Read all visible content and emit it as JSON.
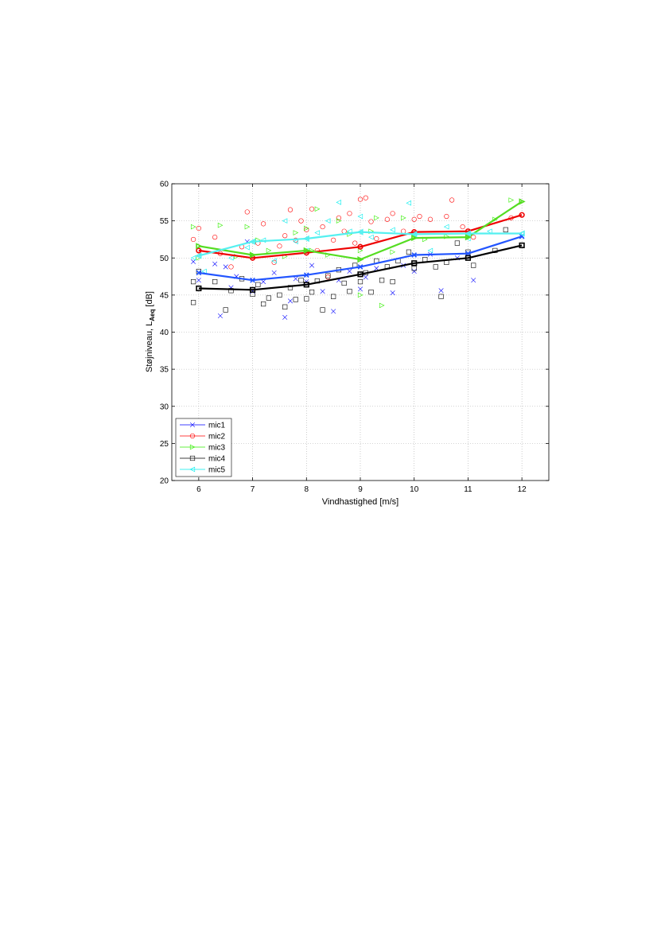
{
  "chart_data": {
    "type": "scatter",
    "xlabel": "Vindhastighed [m/s]",
    "ylabel_main": "Støjniveau, L",
    "ylabel_sub": "Aeq",
    "ylabel_unit": " [dB]",
    "xlim": [
      5.5,
      12.5
    ],
    "ylim": [
      20,
      60
    ],
    "xticks": [
      6,
      7,
      8,
      9,
      10,
      11,
      12
    ],
    "yticks": [
      20,
      25,
      30,
      35,
      40,
      45,
      50,
      55,
      60
    ],
    "grid": true,
    "legend_position": "lower-left",
    "series": [
      {
        "name": "mic1",
        "color": "#0000ff",
        "fit_color": "#2255ff",
        "marker": "x",
        "fit": {
          "x": [
            6,
            7,
            8,
            9,
            10,
            11,
            12
          ],
          "y": [
            48.0,
            47.0,
            47.7,
            48.8,
            50.4,
            50.6,
            52.9
          ]
        },
        "points": [
          [
            5.9,
            49.5
          ],
          [
            6.0,
            47.0
          ],
          [
            6.3,
            49.2
          ],
          [
            6.4,
            42.2
          ],
          [
            6.5,
            48.8
          ],
          [
            6.6,
            46.0
          ],
          [
            6.7,
            47.5
          ],
          [
            6.9,
            52.2
          ],
          [
            7.0,
            45.5
          ],
          [
            7.2,
            46.8
          ],
          [
            7.4,
            48.0
          ],
          [
            7.6,
            42.0
          ],
          [
            7.7,
            44.2
          ],
          [
            7.8,
            47.2
          ],
          [
            8.0,
            46.8
          ],
          [
            8.1,
            49.0
          ],
          [
            8.3,
            45.5
          ],
          [
            8.5,
            42.8
          ],
          [
            8.6,
            47.0
          ],
          [
            8.8,
            48.2
          ],
          [
            9.0,
            45.8
          ],
          [
            9.1,
            47.4
          ],
          [
            9.3,
            48.6
          ],
          [
            9.6,
            45.3
          ],
          [
            9.8,
            49.0
          ],
          [
            10.0,
            48.2
          ],
          [
            10.3,
            50.5
          ],
          [
            10.5,
            45.6
          ],
          [
            10.8,
            50.0
          ],
          [
            11.1,
            47.0
          ],
          [
            12.0,
            53.0
          ]
        ]
      },
      {
        "name": "mic2",
        "color": "#ff0000",
        "fit_color": "#ee0000",
        "marker": "o",
        "fit": {
          "x": [
            6,
            7,
            8,
            9,
            10,
            11,
            12
          ],
          "y": [
            51.0,
            50.0,
            50.7,
            51.5,
            53.5,
            53.6,
            55.8
          ]
        },
        "points": [
          [
            5.9,
            52.5
          ],
          [
            6.0,
            54.0
          ],
          [
            6.3,
            52.8
          ],
          [
            6.4,
            50.6
          ],
          [
            6.6,
            48.8
          ],
          [
            6.8,
            51.5
          ],
          [
            6.9,
            56.2
          ],
          [
            7.1,
            52.0
          ],
          [
            7.2,
            54.6
          ],
          [
            7.4,
            49.4
          ],
          [
            7.5,
            51.6
          ],
          [
            7.6,
            53.0
          ],
          [
            7.7,
            56.5
          ],
          [
            7.8,
            52.4
          ],
          [
            7.9,
            55.0
          ],
          [
            8.0,
            53.8
          ],
          [
            8.1,
            56.6
          ],
          [
            8.2,
            51.0
          ],
          [
            8.3,
            54.2
          ],
          [
            8.4,
            47.4
          ],
          [
            8.5,
            52.4
          ],
          [
            8.6,
            55.4
          ],
          [
            8.7,
            53.6
          ],
          [
            8.8,
            56.0
          ],
          [
            8.9,
            52.0
          ],
          [
            9.0,
            57.9
          ],
          [
            9.1,
            58.1
          ],
          [
            9.2,
            54.9
          ],
          [
            9.3,
            52.6
          ],
          [
            9.5,
            55.2
          ],
          [
            9.6,
            56.0
          ],
          [
            9.8,
            53.6
          ],
          [
            10.0,
            55.2
          ],
          [
            10.1,
            55.6
          ],
          [
            10.3,
            55.2
          ],
          [
            10.6,
            55.6
          ],
          [
            10.7,
            57.8
          ],
          [
            10.9,
            54.2
          ],
          [
            11.1,
            52.8
          ],
          [
            11.8,
            55.4
          ],
          [
            12.0,
            55.8
          ]
        ]
      },
      {
        "name": "mic3",
        "color": "#33ee00",
        "fit_color": "#55dd22",
        "marker": "tri-right",
        "fit": {
          "x": [
            6,
            7,
            8,
            9,
            10,
            11,
            12
          ],
          "y": [
            51.6,
            50.4,
            51.0,
            49.8,
            52.7,
            52.8,
            57.6
          ]
        },
        "points": [
          [
            5.9,
            54.2
          ],
          [
            6.0,
            50.0
          ],
          [
            6.4,
            54.4
          ],
          [
            6.7,
            50.2
          ],
          [
            6.9,
            54.2
          ],
          [
            7.1,
            52.4
          ],
          [
            7.3,
            51.0
          ],
          [
            7.6,
            50.2
          ],
          [
            7.8,
            53.4
          ],
          [
            8.0,
            54.0
          ],
          [
            8.1,
            51.0
          ],
          [
            8.2,
            56.6
          ],
          [
            8.4,
            50.4
          ],
          [
            8.6,
            55.0
          ],
          [
            8.8,
            53.2
          ],
          [
            9.0,
            45.0
          ],
          [
            9.0,
            51.0
          ],
          [
            9.2,
            53.6
          ],
          [
            9.3,
            55.4
          ],
          [
            9.4,
            43.6
          ],
          [
            9.6,
            50.8
          ],
          [
            9.8,
            55.4
          ],
          [
            10.0,
            52.8
          ],
          [
            10.2,
            52.5
          ],
          [
            10.6,
            52.9
          ],
          [
            11.0,
            52.8
          ],
          [
            11.5,
            55.2
          ],
          [
            11.8,
            57.8
          ],
          [
            12.0,
            57.6
          ]
        ]
      },
      {
        "name": "mic4",
        "color": "#000000",
        "fit_color": "#000000",
        "marker": "square",
        "fit": {
          "x": [
            6,
            7,
            8,
            9,
            10,
            11,
            12
          ],
          "y": [
            45.9,
            45.7,
            46.4,
            47.8,
            49.3,
            50.0,
            51.7
          ]
        },
        "points": [
          [
            5.9,
            44.0
          ],
          [
            5.9,
            46.8
          ],
          [
            6.0,
            48.2
          ],
          [
            6.3,
            46.8
          ],
          [
            6.5,
            43.0
          ],
          [
            6.6,
            45.6
          ],
          [
            6.8,
            47.2
          ],
          [
            7.0,
            45.1
          ],
          [
            7.1,
            46.4
          ],
          [
            7.2,
            43.8
          ],
          [
            7.3,
            44.6
          ],
          [
            7.5,
            45.0
          ],
          [
            7.6,
            43.4
          ],
          [
            7.7,
            46.0
          ],
          [
            7.8,
            44.4
          ],
          [
            7.9,
            47.0
          ],
          [
            8.0,
            44.5
          ],
          [
            8.1,
            45.4
          ],
          [
            8.2,
            46.9
          ],
          [
            8.3,
            43.0
          ],
          [
            8.4,
            47.6
          ],
          [
            8.5,
            44.8
          ],
          [
            8.6,
            48.4
          ],
          [
            8.7,
            46.6
          ],
          [
            8.8,
            45.5
          ],
          [
            8.9,
            49.0
          ],
          [
            9.0,
            46.8
          ],
          [
            9.1,
            48.0
          ],
          [
            9.2,
            45.4
          ],
          [
            9.3,
            49.6
          ],
          [
            9.4,
            47.0
          ],
          [
            9.5,
            48.8
          ],
          [
            9.6,
            46.8
          ],
          [
            9.7,
            49.6
          ],
          [
            9.9,
            50.8
          ],
          [
            10.0,
            48.6
          ],
          [
            10.2,
            49.8
          ],
          [
            10.4,
            48.8
          ],
          [
            10.5,
            44.8
          ],
          [
            10.6,
            49.4
          ],
          [
            10.8,
            52.0
          ],
          [
            11.0,
            50.8
          ],
          [
            11.1,
            49.0
          ],
          [
            11.5,
            51.0
          ],
          [
            11.7,
            53.8
          ],
          [
            12.0,
            51.7
          ]
        ]
      },
      {
        "name": "mic5",
        "color": "#00eeee",
        "fit_color": "#55f0f0",
        "marker": "tri-left",
        "fit": {
          "x": [
            6,
            7,
            8,
            9,
            10,
            11,
            12
          ],
          "y": [
            50.3,
            52.2,
            52.6,
            53.5,
            53.2,
            53.3,
            53.3
          ]
        },
        "points": [
          [
            5.9,
            50.0
          ],
          [
            6.1,
            48.2
          ],
          [
            6.6,
            50.0
          ],
          [
            6.9,
            51.4
          ],
          [
            7.2,
            52.4
          ],
          [
            7.4,
            49.6
          ],
          [
            7.6,
            55.0
          ],
          [
            7.8,
            52.2
          ],
          [
            8.0,
            51.0
          ],
          [
            8.2,
            53.4
          ],
          [
            8.4,
            55.0
          ],
          [
            8.6,
            57.5
          ],
          [
            8.8,
            53.6
          ],
          [
            9.0,
            55.6
          ],
          [
            9.2,
            52.8
          ],
          [
            9.6,
            53.8
          ],
          [
            9.9,
            57.4
          ],
          [
            10.3,
            51.0
          ],
          [
            10.6,
            54.2
          ],
          [
            11.0,
            52.6
          ],
          [
            11.4,
            53.6
          ],
          [
            12.0,
            53.3
          ]
        ]
      }
    ]
  }
}
